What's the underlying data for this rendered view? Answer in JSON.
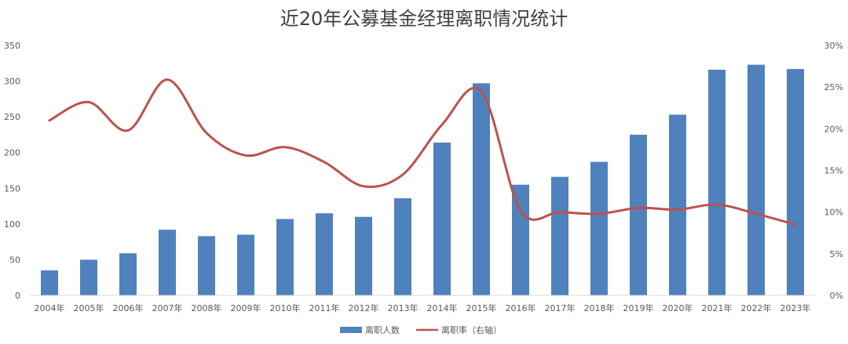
{
  "chart_data": {
    "type": "bar",
    "title": "近20年公募基金经理离职情况统计",
    "categories": [
      "2004年",
      "2005年",
      "2006年",
      "2007年",
      "2008年",
      "2009年",
      "2010年",
      "2011年",
      "2012年",
      "2013年",
      "2014年",
      "2015年",
      "2016年",
      "2017年",
      "2018年",
      "2019年",
      "2020年",
      "2021年",
      "2022年",
      "2023年"
    ],
    "series": [
      {
        "name": "离职人数",
        "type": "bar",
        "axis": "left",
        "color": "#4f81bd",
        "values": [
          35,
          50,
          59,
          92,
          83,
          85,
          107,
          115,
          110,
          136,
          214,
          297,
          155,
          166,
          187,
          225,
          253,
          316,
          323,
          317
        ]
      },
      {
        "name": "离职率（右轴）",
        "type": "line",
        "axis": "right",
        "color": "#c0504d",
        "values": [
          21.0,
          23.2,
          19.8,
          25.9,
          19.5,
          16.8,
          17.8,
          16.0,
          13.1,
          14.5,
          20.5,
          24.5,
          10.2,
          10.0,
          9.8,
          10.5,
          10.3,
          10.9,
          9.8,
          8.5
        ]
      }
    ],
    "y_left": {
      "ylim": [
        0,
        350
      ],
      "ticks": [
        "0",
        "50",
        "100",
        "150",
        "200",
        "250",
        "300",
        "350"
      ]
    },
    "y_right": {
      "ylim": [
        0,
        30
      ],
      "ticks": [
        "0%",
        "5%",
        "10%",
        "15%",
        "20%",
        "25%",
        "30%"
      ]
    },
    "grid": false,
    "legend": "bottom-center"
  }
}
